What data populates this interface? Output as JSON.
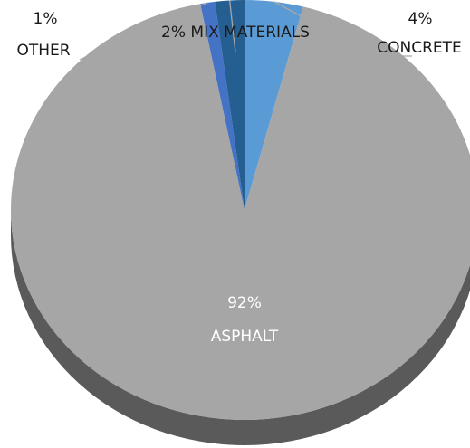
{
  "chart_data": {
    "type": "pie",
    "style": "3d",
    "slices": [
      {
        "label": "ASPHALT",
        "value": 92,
        "value_text": "92%",
        "color": "#a6a6a6",
        "side_color": "#5a5a5a"
      },
      {
        "label": "OTHER",
        "value": 1,
        "value_text": "1%",
        "color": "#4472c4",
        "side_color": "#2f528f"
      },
      {
        "label": "MIX MATERIALS",
        "value": 2,
        "value_text": "2% MIX MATERIALS",
        "color": "#255e91",
        "side_color": "#1a4369"
      },
      {
        "label": "CONCRETE",
        "value": 4,
        "value_text": "4%",
        "color": "#5b9bd5",
        "side_color": "#3d6f9e"
      }
    ]
  }
}
